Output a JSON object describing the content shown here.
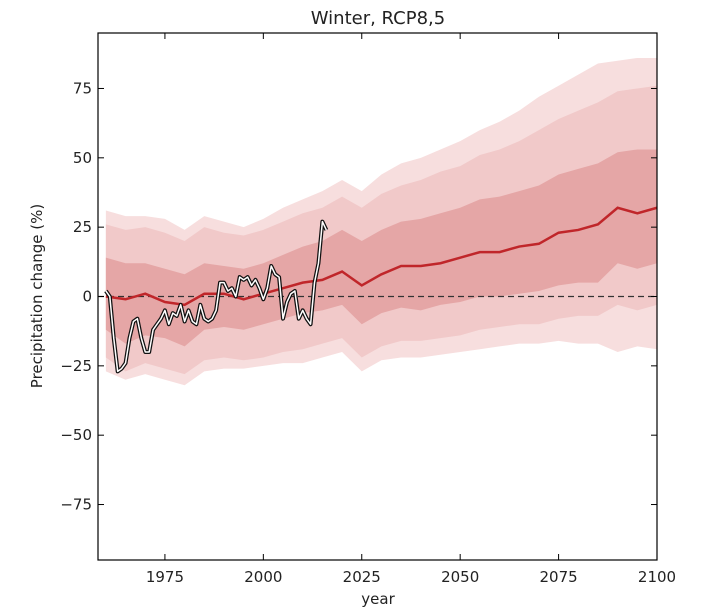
{
  "chart_data": {
    "type": "fan",
    "title": "Winter, RCP8,5",
    "x_label": "year",
    "y_label": "Precipitation change (%)",
    "xlim": [
      1958,
      2100
    ],
    "ylim": [
      -95,
      95
    ],
    "xticks": [
      1975,
      2000,
      2025,
      2050,
      2075,
      2100
    ],
    "yticks": [
      {
        "value": -75,
        "label": "−75"
      },
      {
        "value": -50,
        "label": "−50"
      },
      {
        "value": -25,
        "label": "−25"
      },
      0,
      25,
      50,
      75
    ],
    "hline": 0,
    "x": [
      1960,
      1965,
      1970,
      1975,
      1980,
      1985,
      1990,
      1995,
      2000,
      2005,
      2010,
      2015,
      2020,
      2025,
      2030,
      2035,
      2040,
      2045,
      2050,
      2055,
      2060,
      2065,
      2070,
      2075,
      2080,
      2085,
      2090,
      2095,
      2100
    ],
    "bands": [
      {
        "color": "#f7dede",
        "upper": [
          31,
          29,
          29,
          28,
          24,
          29,
          27,
          25,
          28,
          32,
          35,
          38,
          42,
          38,
          44,
          48,
          50,
          53,
          56,
          60,
          63,
          67,
          72,
          76,
          80,
          84,
          85,
          86,
          86
        ],
        "lower": [
          -27,
          -30,
          -28,
          -30,
          -32,
          -27,
          -26,
          -26,
          -25,
          -24,
          -24,
          -22,
          -20,
          -27,
          -23,
          -22,
          -22,
          -21,
          -20,
          -19,
          -18,
          -17,
          -17,
          -16,
          -17,
          -17,
          -20,
          -18,
          -19
        ]
      },
      {
        "color": "#f1c9c9",
        "upper": [
          26,
          24,
          25,
          23,
          20,
          25,
          23,
          22,
          24,
          27,
          30,
          32,
          36,
          32,
          37,
          40,
          42,
          45,
          47,
          51,
          53,
          56,
          60,
          64,
          67,
          70,
          74,
          75,
          76
        ],
        "lower": [
          -22,
          -27,
          -24,
          -26,
          -28,
          -23,
          -22,
          -23,
          -22,
          -20,
          -19,
          -17,
          -15,
          -22,
          -18,
          -16,
          -16,
          -15,
          -14,
          -12,
          -11,
          -10,
          -10,
          -8,
          -7,
          -7,
          -3,
          -5,
          -3
        ]
      },
      {
        "color": "#e5a6a6",
        "upper": [
          14,
          12,
          12,
          10,
          8,
          12,
          11,
          10,
          12,
          15,
          18,
          20,
          24,
          20,
          24,
          27,
          28,
          30,
          32,
          35,
          36,
          38,
          40,
          44,
          46,
          48,
          52,
          53,
          53
        ],
        "lower": [
          -12,
          -17,
          -14,
          -15,
          -18,
          -12,
          -11,
          -12,
          -10,
          -8,
          -6,
          -5,
          -3,
          -10,
          -6,
          -4,
          -5,
          -3,
          -2,
          0,
          0,
          1,
          2,
          4,
          5,
          5,
          12,
          10,
          12
        ]
      }
    ],
    "median": {
      "color": "#c0262a",
      "values": [
        0,
        -1,
        1,
        -2,
        -3,
        1,
        1,
        -1,
        1,
        3,
        5,
        6,
        9,
        4,
        8,
        11,
        11,
        12,
        14,
        16,
        16,
        18,
        19,
        23,
        24,
        26,
        32,
        30,
        32
      ]
    },
    "observed": {
      "color": "#ffffff",
      "outline": "#111111",
      "x": [
        1960,
        1961,
        1962,
        1963,
        1964,
        1965,
        1966,
        1967,
        1968,
        1969,
        1970,
        1971,
        1972,
        1973,
        1974,
        1975,
        1976,
        1977,
        1978,
        1979,
        1980,
        1981,
        1982,
        1983,
        1984,
        1985,
        1986,
        1987,
        1988,
        1989,
        1990,
        1991,
        1992,
        1993,
        1994,
        1995,
        1996,
        1997,
        1998,
        1999,
        2000,
        2001,
        2002,
        2003,
        2004,
        2005,
        2006,
        2007,
        2008,
        2009,
        2010,
        2011,
        2012,
        2013,
        2014,
        2015,
        2016
      ],
      "values": [
        2,
        0,
        -15,
        -27,
        -26,
        -24,
        -15,
        -9,
        -8,
        -15,
        -20,
        -20,
        -12,
        -10,
        -8,
        -5,
        -10,
        -6,
        -7,
        -3,
        -9,
        -5,
        -9,
        -10,
        -3,
        -8,
        -9,
        -8,
        -5,
        5,
        5,
        2,
        3,
        0,
        7,
        6,
        7,
        4,
        6,
        3,
        -1,
        3,
        11,
        8,
        7,
        -8,
        -2,
        1,
        2,
        -8,
        -5,
        -8,
        -10,
        5,
        12,
        27,
        24
      ]
    }
  }
}
